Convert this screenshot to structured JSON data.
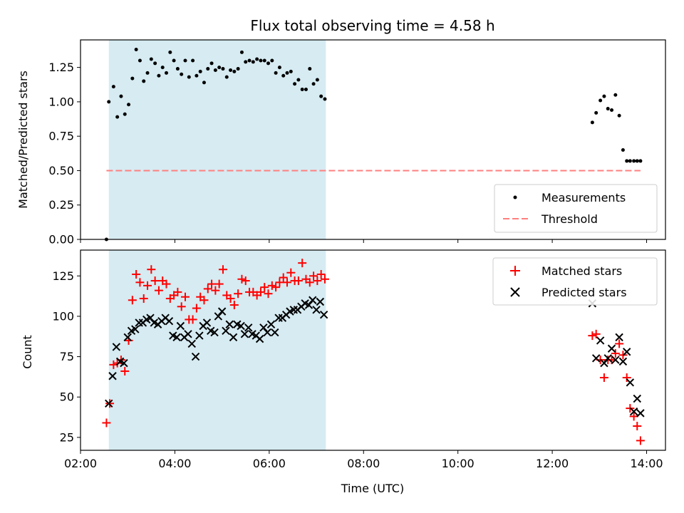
{
  "title": "Flux total observing time = 4.58 h",
  "colors": {
    "shade": "#add8e6",
    "threshold": "#ff7f7f",
    "matched": "#ff0000",
    "predicted": "#000000",
    "measure": "#000000"
  },
  "chart_data": [
    {
      "type": "scatter",
      "panel": "top",
      "ylabel": "Matched/Predicted stars",
      "ylim": [
        0,
        1.45
      ],
      "xlim": [
        2.0,
        14.4
      ],
      "yticks": [
        "0.00",
        "0.25",
        "0.50",
        "0.75",
        "1.00",
        "1.25"
      ],
      "shaded_x_range": [
        2.6,
        7.2
      ],
      "legend": {
        "position": "lower-right",
        "entries": [
          "Measurements",
          "Threshold"
        ]
      },
      "series": [
        {
          "name": "Measurements",
          "marker": "dot",
          "x": [
            2.55,
            2.6,
            2.7,
            2.78,
            2.86,
            2.94,
            3.02,
            3.1,
            3.18,
            3.26,
            3.34,
            3.42,
            3.5,
            3.58,
            3.66,
            3.74,
            3.82,
            3.9,
            3.98,
            4.06,
            4.14,
            4.22,
            4.3,
            4.38,
            4.46,
            4.54,
            4.62,
            4.7,
            4.78,
            4.86,
            4.94,
            5.02,
            5.1,
            5.18,
            5.26,
            5.34,
            5.42,
            5.5,
            5.58,
            5.66,
            5.74,
            5.82,
            5.9,
            5.98,
            6.06,
            6.14,
            6.22,
            6.3,
            6.38,
            6.46,
            6.54,
            6.62,
            6.7,
            6.78,
            6.86,
            6.94,
            7.02,
            7.1,
            7.18,
            12.85,
            12.93,
            13.02,
            13.1,
            13.18,
            13.26,
            13.34,
            13.42,
            13.5,
            13.58,
            13.65,
            13.73,
            13.8,
            13.87
          ],
          "y": [
            0.0,
            1.0,
            1.11,
            0.89,
            1.04,
            0.91,
            0.98,
            1.17,
            1.38,
            1.3,
            1.15,
            1.21,
            1.31,
            1.28,
            1.19,
            1.25,
            1.21,
            1.36,
            1.3,
            1.24,
            1.2,
            1.3,
            1.18,
            1.3,
            1.19,
            1.22,
            1.14,
            1.24,
            1.28,
            1.23,
            1.25,
            1.24,
            1.18,
            1.23,
            1.22,
            1.24,
            1.36,
            1.29,
            1.3,
            1.29,
            1.31,
            1.3,
            1.3,
            1.28,
            1.3,
            1.21,
            1.25,
            1.19,
            1.21,
            1.22,
            1.13,
            1.16,
            1.09,
            1.09,
            1.24,
            1.13,
            1.16,
            1.04,
            1.02,
            0.85,
            0.92,
            1.01,
            1.04,
            0.95,
            0.94,
            1.05,
            0.9,
            0.65,
            0.57,
            0.57,
            0.57,
            0.57,
            0.57
          ]
        },
        {
          "name": "Threshold",
          "marker": "dashed-line",
          "x": [
            2.55,
            13.87
          ],
          "y": [
            0.5,
            0.5
          ]
        }
      ]
    },
    {
      "type": "scatter",
      "panel": "bottom",
      "xlabel": "Time (UTC)",
      "ylabel": "Count",
      "ylim": [
        17,
        141
      ],
      "xlim": [
        2.0,
        14.4
      ],
      "xticks": [
        "02:00",
        "04:00",
        "06:00",
        "08:00",
        "10:00",
        "12:00",
        "14:00"
      ],
      "yticks": [
        "25",
        "50",
        "75",
        "100",
        "125"
      ],
      "shaded_x_range": [
        2.6,
        7.2
      ],
      "legend": {
        "position": "top-right",
        "entries": [
          "Matched stars",
          "Predicted stars"
        ]
      },
      "series": [
        {
          "name": "Matched stars",
          "marker": "plus",
          "x": [
            2.55,
            2.62,
            2.7,
            2.78,
            2.86,
            2.94,
            3.02,
            3.1,
            3.18,
            3.26,
            3.34,
            3.42,
            3.5,
            3.58,
            3.66,
            3.74,
            3.82,
            3.9,
            3.98,
            4.06,
            4.14,
            4.22,
            4.3,
            4.38,
            4.46,
            4.54,
            4.62,
            4.7,
            4.78,
            4.86,
            4.94,
            5.02,
            5.1,
            5.18,
            5.26,
            5.34,
            5.42,
            5.5,
            5.58,
            5.66,
            5.74,
            5.82,
            5.9,
            5.98,
            6.06,
            6.14,
            6.22,
            6.3,
            6.38,
            6.46,
            6.54,
            6.62,
            6.7,
            6.78,
            6.86,
            6.94,
            7.02,
            7.1,
            7.18,
            12.85,
            12.93,
            13.02,
            13.1,
            13.18,
            13.26,
            13.34,
            13.42,
            13.5,
            13.58,
            13.65,
            13.73,
            13.8,
            13.87
          ],
          "y": [
            34,
            46,
            70,
            71,
            73,
            66,
            85,
            110,
            126,
            121,
            111,
            119,
            129,
            122,
            116,
            122,
            120,
            111,
            113,
            115,
            106,
            112,
            98,
            98,
            105,
            112,
            110,
            117,
            120,
            116,
            120,
            129,
            113,
            111,
            107,
            114,
            123,
            122,
            115,
            115,
            113,
            115,
            118,
            114,
            119,
            118,
            121,
            124,
            121,
            127,
            122,
            122,
            133,
            123,
            121,
            125,
            122,
            126,
            123,
            88,
            89,
            73,
            62,
            73,
            73,
            77,
            83,
            76,
            62,
            43,
            38,
            32,
            23
          ]
        },
        {
          "name": "Predicted stars",
          "marker": "x",
          "x": [
            2.6,
            2.68,
            2.76,
            2.84,
            2.92,
            3.0,
            3.08,
            3.16,
            3.24,
            3.32,
            3.4,
            3.48,
            3.56,
            3.64,
            3.72,
            3.8,
            3.88,
            3.96,
            4.04,
            4.12,
            4.2,
            4.28,
            4.36,
            4.44,
            4.52,
            4.6,
            4.68,
            4.76,
            4.84,
            4.92,
            5.0,
            5.08,
            5.16,
            5.24,
            5.32,
            5.4,
            5.48,
            5.56,
            5.64,
            5.72,
            5.8,
            5.88,
            5.96,
            6.04,
            6.12,
            6.2,
            6.28,
            6.36,
            6.44,
            6.52,
            6.6,
            6.68,
            6.76,
            6.84,
            6.92,
            7.0,
            7.08,
            7.16,
            12.85,
            12.93,
            13.02,
            13.1,
            13.18,
            13.26,
            13.34,
            13.42,
            13.5,
            13.58,
            13.65,
            13.73,
            13.8,
            13.87
          ],
          "y": [
            46,
            63,
            81,
            72,
            71,
            87,
            91,
            92,
            96,
            96,
            98,
            99,
            96,
            95,
            97,
            99,
            97,
            88,
            87,
            94,
            87,
            89,
            83,
            75,
            88,
            94,
            96,
            91,
            90,
            100,
            103,
            91,
            95,
            87,
            95,
            94,
            89,
            93,
            89,
            88,
            86,
            93,
            90,
            95,
            90,
            99,
            99,
            101,
            103,
            104,
            104,
            106,
            108,
            107,
            110,
            104,
            109,
            101,
            108,
            74,
            85,
            71,
            74,
            80,
            73,
            87,
            72,
            78,
            59,
            41,
            49,
            40
          ]
        }
      ]
    }
  ]
}
